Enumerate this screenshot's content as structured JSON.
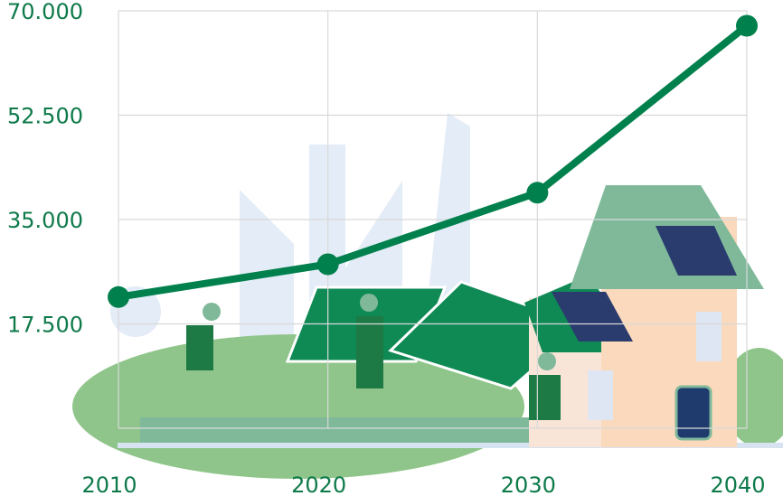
{
  "chart_data": {
    "type": "line",
    "categories": [
      "2010",
      "2020",
      "2030",
      "2040"
    ],
    "series": [
      {
        "color": "#00804c",
        "values": [
          22000,
          27500,
          39500,
          67500
        ]
      }
    ],
    "ylim": [
      0,
      70000
    ],
    "yticks": [
      {
        "value": 17500,
        "label": "17.500"
      },
      {
        "value": 35000,
        "label": "35.000"
      },
      {
        "value": 52500,
        "label": "52.500"
      },
      {
        "value": 70000,
        "label": "70.000"
      }
    ],
    "grid": true
  }
}
